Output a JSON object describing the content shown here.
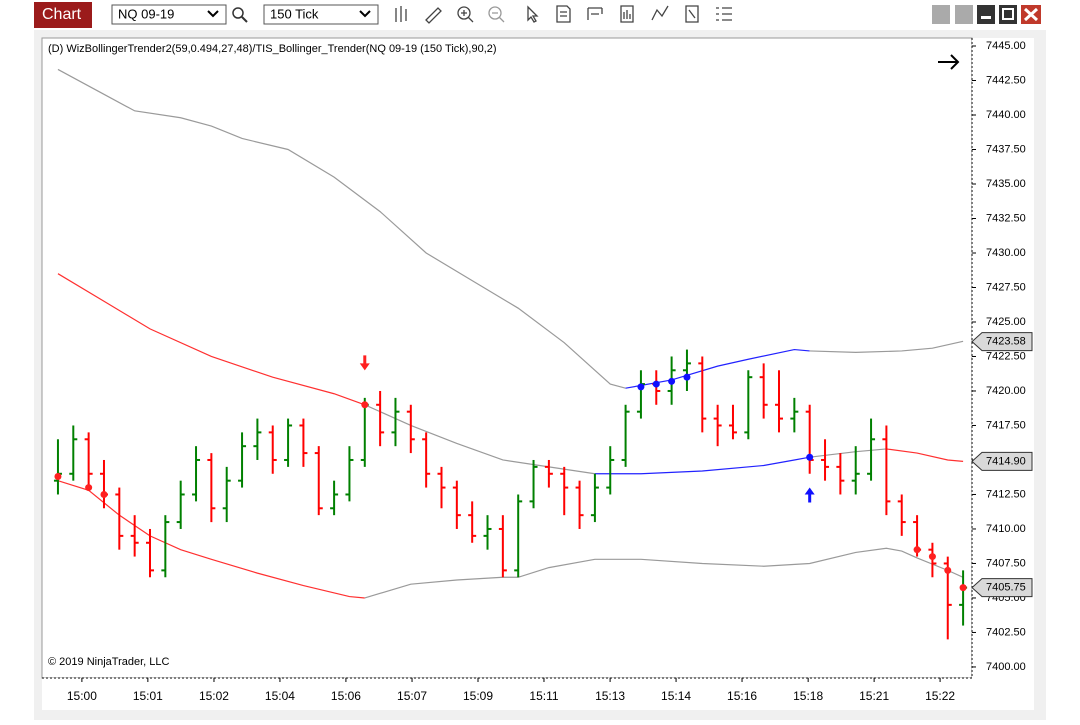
{
  "toolbar": {
    "tab": "Chart",
    "instrument": "NQ 09-19",
    "interval": "150 Tick"
  },
  "chart_data": {
    "type": "ohlc",
    "title": "(D) WizBollingerTrender2(59,0.494,27,48)/TIS_Bollinger_Trender(NQ 09-19 (150 Tick),90,2)",
    "copyright": "© 2019 NinjaTrader, LLC",
    "up_color": "#008000",
    "down_color": "#ff0000",
    "open": [
      7413.5,
      7414,
      7416.5,
      7414,
      7412.5,
      7409.5,
      7409,
      7407,
      7410.5,
      7412.5,
      7415,
      7411.5,
      7413.5,
      7416,
      7417,
      7415,
      7417.5,
      7415.5,
      7411.5,
      7412.5,
      7415,
      7419,
      7417,
      7418.5,
      7416.5,
      7414,
      7413,
      7411,
      7409.5,
      7410,
      7407,
      7412,
      7414.5,
      7414,
      7413,
      7411,
      7413,
      7415,
      7418.5,
      7420.5,
      7420,
      7421.5,
      7422,
      7418,
      7417.5,
      7417,
      7421,
      7419,
      7418,
      7418.5,
      7415,
      7414.5,
      7413.5,
      7414,
      7416.5,
      7412,
      7410.5,
      7408.5,
      7407.5,
      7404.5
    ],
    "high": [
      7416.5,
      7417.5,
      7417,
      7415,
      7413,
      7411,
      7410,
      7411,
      7413.5,
      7416,
      7415.5,
      7414.5,
      7417,
      7418,
      7417.5,
      7418,
      7418,
      7416,
      7413.5,
      7416,
      7419.5,
      7420,
      7419.5,
      7419,
      7417,
      7414.5,
      7413.5,
      7412,
      7411,
      7411,
      7412.5,
      7415,
      7415,
      7414.5,
      7413.5,
      7414,
      7416,
      7419,
      7421.5,
      7421.5,
      7422.5,
      7423,
      7422.5,
      7419,
      7419,
      7421.5,
      7422,
      7421.5,
      7419.5,
      7419,
      7416.5,
      7415.5,
      7416,
      7418,
      7417.5,
      7412.5,
      7411,
      7409,
      7408,
      7407
    ],
    "low": [
      7412.5,
      7413.5,
      7413,
      7411.5,
      7408.5,
      7408,
      7406.5,
      7406.5,
      7410,
      7412,
      7410.5,
      7410.5,
      7413,
      7415,
      7414,
      7414.5,
      7414.5,
      7411,
      7411,
      7412,
      7414.5,
      7416,
      7416,
      7415.5,
      7413,
      7411.5,
      7410,
      7409,
      7408.5,
      7406.5,
      7406.5,
      7411.5,
      7413,
      7411,
      7410,
      7410.5,
      7412.5,
      7414.5,
      7418,
      7419,
      7419,
      7420,
      7417,
      7416,
      7416.5,
      7416.5,
      7418,
      7417,
      7417,
      7414,
      7413.5,
      7412.5,
      7412.5,
      7413.5,
      7411,
      7409.5,
      7408,
      7406.5,
      7402,
      7403
    ],
    "close": [
      7414,
      7416.5,
      7414,
      7412.5,
      7409.5,
      7409,
      7407,
      7410.5,
      7412.5,
      7415,
      7411.5,
      7413.5,
      7416,
      7417,
      7415,
      7417.5,
      7415.5,
      7411.5,
      7412.5,
      7415,
      7419,
      7417,
      7418.5,
      7416.5,
      7414,
      7413,
      7411,
      7409.5,
      7410,
      7407,
      7412,
      7414.5,
      7414,
      7413,
      7411,
      7413,
      7415,
      7418.5,
      7420.5,
      7420,
      7421.5,
      7422,
      7418,
      7417.5,
      7417,
      7421,
      7419,
      7418,
      7418.5,
      7415,
      7414.5,
      7413.5,
      7414,
      7416.5,
      7412,
      7410.5,
      7408.5,
      7407.5,
      7404.5,
      7405.75
    ],
    "lines": [
      {
        "color": "#9a9a9a",
        "x": [
          0,
          3,
          5,
          8,
          10,
          12,
          15,
          18,
          21,
          24,
          27,
          30,
          33,
          35,
          36,
          37
        ],
        "values": [
          7443.3,
          7441.5,
          7440.3,
          7439.8,
          7439.2,
          7438.3,
          7437.5,
          7435.5,
          7433,
          7430,
          7428,
          7426,
          7423.5,
          7421.5,
          7420.5,
          7420.2
        ]
      },
      {
        "color": "#2222ff",
        "x": [
          37,
          40,
          43,
          45,
          48,
          49
        ],
        "values": [
          7420.2,
          7420.8,
          7421.8,
          7422.3,
          7423,
          7422.9
        ]
      },
      {
        "color": "#9a9a9a",
        "x": [
          49,
          52,
          55,
          57,
          59
        ],
        "values": [
          7422.9,
          7422.8,
          7422.9,
          7423.1,
          7423.6
        ]
      },
      {
        "color": "#ff3030",
        "x": [
          0,
          3,
          6,
          10,
          14,
          18,
          20
        ],
        "values": [
          7428.5,
          7426.5,
          7424.5,
          7422.5,
          7421,
          7419.8,
          7419
        ]
      },
      {
        "color": "#9a9a9a",
        "x": [
          20,
          23,
          26,
          29,
          32,
          35
        ],
        "values": [
          7419,
          7417.5,
          7416.2,
          7415,
          7414.5,
          7414
        ]
      },
      {
        "color": "#2222ff",
        "x": [
          35,
          38,
          42,
          46,
          48,
          49
        ],
        "values": [
          7414,
          7414,
          7414.2,
          7414.6,
          7415,
          7415.2
        ]
      },
      {
        "color": "#9a9a9a",
        "x": [
          49,
          52,
          54
        ],
        "values": [
          7415.2,
          7415.6,
          7415.8
        ]
      },
      {
        "color": "#ff3030",
        "x": [
          54,
          56,
          58,
          59
        ],
        "values": [
          7415.8,
          7415.5,
          7415,
          7414.9
        ]
      },
      {
        "color": "#ff3030",
        "x": [
          0,
          2,
          4,
          6,
          8,
          10,
          13,
          16,
          19,
          20
        ],
        "values": [
          7413.5,
          7412.8,
          7411,
          7409.5,
          7408.5,
          7407.8,
          7406.8,
          7405.9,
          7405.1,
          7405
        ]
      },
      {
        "color": "#9a9a9a",
        "x": [
          20,
          23,
          26,
          29,
          30,
          32,
          35,
          38,
          42,
          46,
          49,
          52,
          54,
          55,
          56,
          58,
          59
        ],
        "values": [
          7405,
          7406,
          7406.3,
          7406.5,
          7406.5,
          7407.2,
          7407.8,
          7407.8,
          7407.5,
          7407.3,
          7407.5,
          7408.3,
          7408.6,
          7408.4,
          7407.9,
          7407,
          7406.5
        ]
      }
    ],
    "dots": [
      {
        "color": "#ff2020",
        "x": [
          0,
          2,
          3,
          20,
          56,
          57,
          58,
          59
        ],
        "values": [
          7413.8,
          7413,
          7412.5,
          7419,
          7408.5,
          7408,
          7407,
          7405.75
        ]
      },
      {
        "color": "#1010ff",
        "x": [
          38,
          39,
          40,
          41,
          49
        ],
        "values": [
          7420.3,
          7420.5,
          7420.7,
          7421,
          7415.2
        ]
      }
    ],
    "arrows": [
      {
        "color": "#ff2020",
        "direction": "down",
        "x": 20,
        "value": 7422
      },
      {
        "color": "#1010ff",
        "direction": "up",
        "x": 49,
        "value": 7412.5
      }
    ],
    "price_markers": [
      {
        "value": 7423.58,
        "label": "7423.58"
      },
      {
        "value": 7414.9,
        "label": "7414.90"
      },
      {
        "value": 7405.75,
        "label": "7405.75"
      }
    ],
    "xlim": [
      -1.04,
      59.58
    ],
    "ylim": [
      7399.2,
      7445.58
    ],
    "xticks": [
      {
        "value": 1.56,
        "label": "15:00"
      },
      {
        "value": 5.86,
        "label": "15:01"
      },
      {
        "value": 10.17,
        "label": "15:02"
      },
      {
        "value": 14.47,
        "label": "15:04"
      },
      {
        "value": 18.77,
        "label": "15:06"
      },
      {
        "value": 23.08,
        "label": "15:07"
      },
      {
        "value": 27.38,
        "label": "15:09"
      },
      {
        "value": 31.68,
        "label": "15:11"
      },
      {
        "value": 35.99,
        "label": "15:13"
      },
      {
        "value": 40.29,
        "label": "15:14"
      },
      {
        "value": 44.59,
        "label": "15:16"
      },
      {
        "value": 48.9,
        "label": "15:18"
      },
      {
        "value": 53.2,
        "label": "15:21"
      },
      {
        "value": 57.5,
        "label": "15:22"
      }
    ],
    "yticks": [
      {
        "value": 7400,
        "label": "7400.00"
      },
      {
        "value": 7402.5,
        "label": "7402.50"
      },
      {
        "value": 7405,
        "label": "7405.00"
      },
      {
        "value": 7407.5,
        "label": "7407.50"
      },
      {
        "value": 7410,
        "label": "7410.00"
      },
      {
        "value": 7412.5,
        "label": "7412.50"
      },
      {
        "value": 7415,
        "label": "7415.00"
      },
      {
        "value": 7417.5,
        "label": "7417.50"
      },
      {
        "value": 7420,
        "label": "7420.00"
      },
      {
        "value": 7422.5,
        "label": "7422.50"
      },
      {
        "value": 7425,
        "label": "7425.00"
      },
      {
        "value": 7427.5,
        "label": "7427.50"
      },
      {
        "value": 7430,
        "label": "7430.00"
      },
      {
        "value": 7432.5,
        "label": "7432.50"
      },
      {
        "value": 7435,
        "label": "7435.00"
      },
      {
        "value": 7437.5,
        "label": "7437.50"
      },
      {
        "value": 7440,
        "label": "7440.00"
      },
      {
        "value": 7442.5,
        "label": "7442.50"
      },
      {
        "value": 7445,
        "label": "7445.00"
      }
    ]
  }
}
